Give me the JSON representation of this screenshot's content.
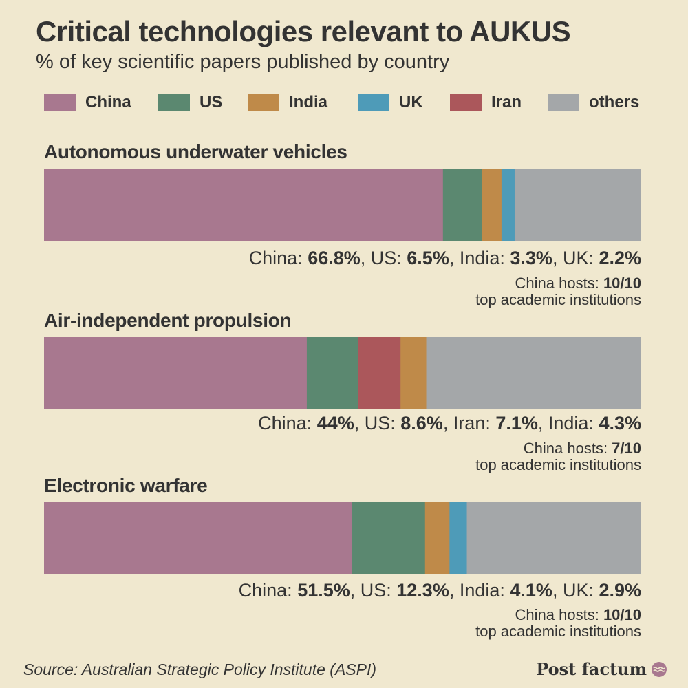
{
  "header": {
    "title": "Critical technologies relevant to AUKUS",
    "subtitle": "% of key scientific papers published by country"
  },
  "legend": [
    {
      "label": "China",
      "color": "#a8788f"
    },
    {
      "label": "US",
      "color": "#5b8870"
    },
    {
      "label": "India",
      "color": "#bf8a49"
    },
    {
      "label": "UK",
      "color": "#4e9bb8"
    },
    {
      "label": "Iran",
      "color": "#ab575b"
    },
    {
      "label": "others",
      "color": "#a4a7a9"
    }
  ],
  "chart_data": [
    {
      "type": "bar",
      "title": "Autonomous underwater vehicles",
      "orientation": "horizontal-stacked",
      "xlim": [
        0,
        100
      ],
      "segments": [
        {
          "name": "China",
          "value": 66.8,
          "color": "#a8788f"
        },
        {
          "name": "US",
          "value": 6.5,
          "color": "#5b8870"
        },
        {
          "name": "India",
          "value": 3.3,
          "color": "#bf8a49"
        },
        {
          "name": "UK",
          "value": 2.2,
          "color": "#4e9bb8"
        },
        {
          "name": "others",
          "value": 21.2,
          "color": "#a4a7a9"
        }
      ],
      "stats_line": [
        {
          "text": "China: ",
          "bold": false
        },
        {
          "text": "66.8%",
          "bold": true
        },
        {
          "text": ", US: ",
          "bold": false
        },
        {
          "text": "6.5%",
          "bold": true
        },
        {
          "text": ", India: ",
          "bold": false
        },
        {
          "text": "3.3%",
          "bold": true
        },
        {
          "text": ", UK: ",
          "bold": false
        },
        {
          "text": "2.2%",
          "bold": true
        }
      ],
      "hosts_label": "China hosts: ",
      "hosts_value": "10/10",
      "institutions_label": "top academic institutions"
    },
    {
      "type": "bar",
      "title": "Air-independent propulsion",
      "orientation": "horizontal-stacked",
      "xlim": [
        0,
        100
      ],
      "segments": [
        {
          "name": "China",
          "value": 44,
          "color": "#a8788f"
        },
        {
          "name": "US",
          "value": 8.6,
          "color": "#5b8870"
        },
        {
          "name": "Iran",
          "value": 7.1,
          "color": "#ab575b"
        },
        {
          "name": "India",
          "value": 4.3,
          "color": "#bf8a49"
        },
        {
          "name": "others",
          "value": 36.0,
          "color": "#a4a7a9"
        }
      ],
      "stats_line": [
        {
          "text": "China: ",
          "bold": false
        },
        {
          "text": "44%",
          "bold": true
        },
        {
          "text": ", US: ",
          "bold": false
        },
        {
          "text": "8.6%",
          "bold": true
        },
        {
          "text": ", Iran: ",
          "bold": false
        },
        {
          "text": "7.1%",
          "bold": true
        },
        {
          "text": ", India: ",
          "bold": false
        },
        {
          "text": "4.3%",
          "bold": true
        }
      ],
      "hosts_label": "China hosts: ",
      "hosts_value": "7/10",
      "institutions_label": "top academic institutions"
    },
    {
      "type": "bar",
      "title": "Electronic warfare",
      "orientation": "horizontal-stacked",
      "xlim": [
        0,
        100
      ],
      "segments": [
        {
          "name": "China",
          "value": 51.5,
          "color": "#a8788f"
        },
        {
          "name": "US",
          "value": 12.3,
          "color": "#5b8870"
        },
        {
          "name": "India",
          "value": 4.1,
          "color": "#bf8a49"
        },
        {
          "name": "UK",
          "value": 2.9,
          "color": "#4e9bb8"
        },
        {
          "name": "others",
          "value": 29.2,
          "color": "#a4a7a9"
        }
      ],
      "stats_line": [
        {
          "text": "China: ",
          "bold": false
        },
        {
          "text": "51.5%",
          "bold": true
        },
        {
          "text": ", US: ",
          "bold": false
        },
        {
          "text": "12.3%",
          "bold": true
        },
        {
          "text": ", India: ",
          "bold": false
        },
        {
          "text": "4.1%",
          "bold": true
        },
        {
          "text": ", UK: ",
          "bold": false
        },
        {
          "text": "2.9%",
          "bold": true
        }
      ],
      "hosts_label": "China hosts: ",
      "hosts_value": "10/10",
      "institutions_label": "top academic institutions"
    }
  ],
  "footer": {
    "source": "Source: Australian Strategic Policy Institute (ASPI)",
    "brand": "Post factum",
    "brand_icon": "wave-logo-icon"
  }
}
